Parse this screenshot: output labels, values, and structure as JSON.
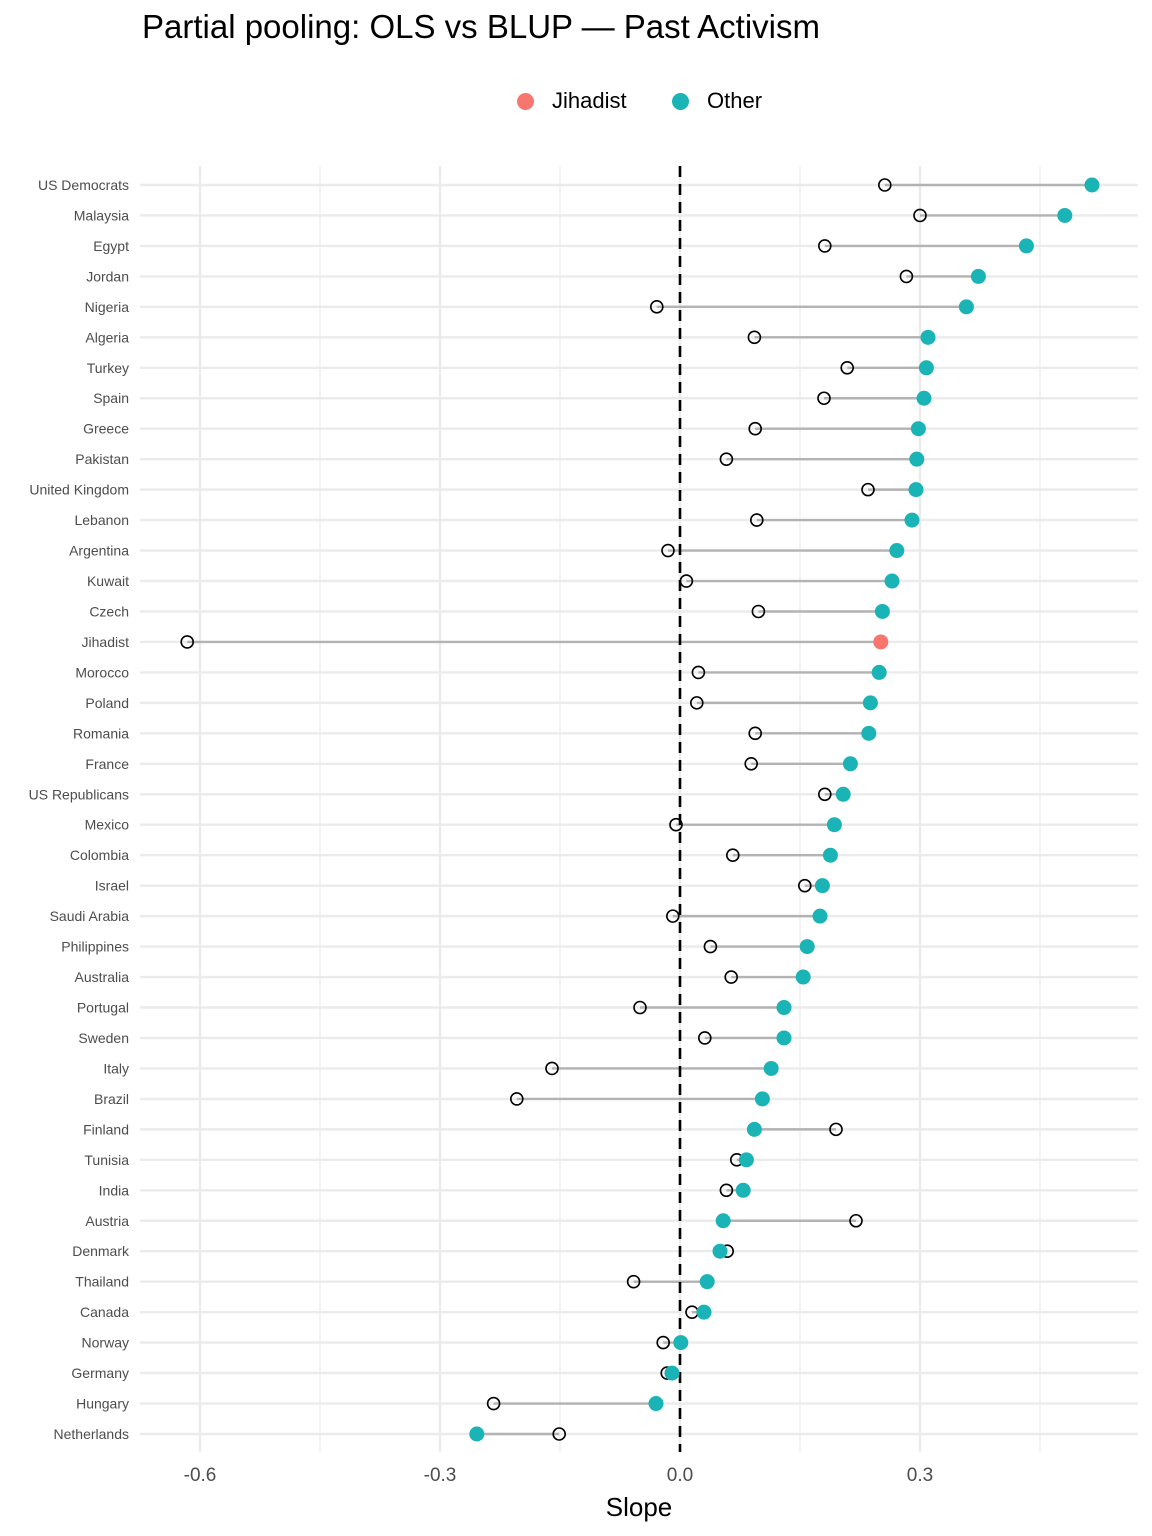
{
  "chart_data": {
    "type": "dumbbell",
    "title": "Partial pooling: OLS vs BLUP — Past Activism",
    "xlabel": "Slope",
    "ylabel": "",
    "xlim": [
      -0.675,
      0.5725
    ],
    "x_ticks": [
      -0.6,
      -0.3,
      0.0,
      0.3
    ],
    "x_tick_labels": [
      "-0.6",
      "-0.3",
      "0.0",
      "0.3"
    ],
    "minor_x_ticks": [
      -0.45,
      -0.15,
      0.15,
      0.45
    ],
    "reference_line": 0.0,
    "grid": true,
    "legend": {
      "position": "top",
      "entries": [
        {
          "label": "Jihadist",
          "color": "#F8766D"
        },
        {
          "label": "Other",
          "color": "#00BFC4"
        }
      ]
    },
    "colors": {
      "Jihadist": "#F8766D",
      "Other": "#1AB3B6",
      "segment": "#b3b3b3",
      "ols_stroke": "#000000",
      "grid": "#ebebeb",
      "reference": "#000000"
    },
    "marker_meaning": {
      "open_circle": "OLS",
      "filled_circle": "BLUP"
    },
    "categories": [
      "US Democrats",
      "Malaysia",
      "Egypt",
      "Jordan",
      "Nigeria",
      "Algeria",
      "Turkey",
      "Spain",
      "Greece",
      "Pakistan",
      "United Kingdom",
      "Lebanon",
      "Argentina",
      "Kuwait",
      "Czech",
      "Jihadist",
      "Morocco",
      "Poland",
      "Romania",
      "France",
      "US Republicans",
      "Mexico",
      "Colombia",
      "Israel",
      "Saudi Arabia",
      "Philippines",
      "Australia",
      "Portugal",
      "Sweden",
      "Italy",
      "Brazil",
      "Finland",
      "Tunisia",
      "India",
      "Austria",
      "Denmark",
      "Thailand",
      "Canada",
      "Norway",
      "Germany",
      "Hungary",
      "Netherlands"
    ],
    "groups": [
      "Other",
      "Other",
      "Other",
      "Other",
      "Other",
      "Other",
      "Other",
      "Other",
      "Other",
      "Other",
      "Other",
      "Other",
      "Other",
      "Other",
      "Other",
      "Jihadist",
      "Other",
      "Other",
      "Other",
      "Other",
      "Other",
      "Other",
      "Other",
      "Other",
      "Other",
      "Other",
      "Other",
      "Other",
      "Other",
      "Other",
      "Other",
      "Other",
      "Other",
      "Other",
      "Other",
      "Other",
      "Other",
      "Other",
      "Other",
      "Other",
      "Other",
      "Other"
    ],
    "series": [
      {
        "name": "OLS",
        "values": [
          0.256,
          0.3,
          0.181,
          0.283,
          -0.029,
          0.093,
          0.209,
          0.18,
          0.094,
          0.058,
          0.235,
          0.096,
          -0.015,
          0.008,
          0.098,
          -0.616,
          0.023,
          0.021,
          0.094,
          0.089,
          0.181,
          -0.005,
          0.066,
          0.156,
          -0.009,
          0.038,
          0.064,
          -0.05,
          0.031,
          -0.16,
          -0.204,
          0.195,
          0.071,
          0.058,
          0.22,
          0.059,
          -0.058,
          0.015,
          -0.021,
          -0.016,
          -0.233,
          -0.151
        ]
      },
      {
        "name": "BLUP",
        "values": [
          0.515,
          0.481,
          0.433,
          0.373,
          0.358,
          0.31,
          0.308,
          0.305,
          0.298,
          0.296,
          0.295,
          0.29,
          0.271,
          0.265,
          0.253,
          0.251,
          0.249,
          0.238,
          0.236,
          0.213,
          0.204,
          0.193,
          0.188,
          0.178,
          0.175,
          0.159,
          0.154,
          0.13,
          0.13,
          0.114,
          0.103,
          0.093,
          0.083,
          0.079,
          0.054,
          0.05,
          0.034,
          0.03,
          0.001,
          -0.01,
          -0.03,
          -0.254
        ]
      }
    ]
  }
}
